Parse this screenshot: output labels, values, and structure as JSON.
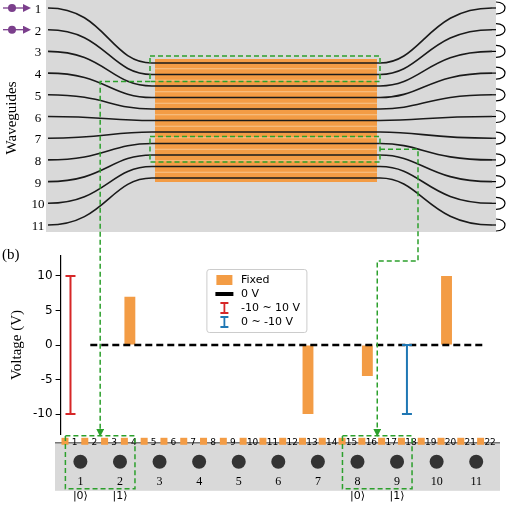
{
  "chart_data": {
    "type": "bar",
    "y_label": "Voltage (V)",
    "categories": [
      "1",
      "2",
      "3",
      "4",
      "5",
      "6",
      "7",
      "8",
      "9",
      "10",
      "11",
      "12",
      "13",
      "14",
      "15",
      "16",
      "17",
      "18",
      "19",
      "20",
      "21",
      "22"
    ],
    "series": [
      {
        "name": "Fixed",
        "type": "bar",
        "color": "#f39c45",
        "values": [
          null,
          null,
          null,
          7,
          null,
          null,
          null,
          null,
          null,
          null,
          null,
          null,
          -10,
          null,
          null,
          -4.5,
          null,
          null,
          null,
          10,
          null,
          null
        ]
      },
      {
        "name": "0 V",
        "type": "line",
        "color": "#000000",
        "line_style": "dashed",
        "values": [
          null,
          0,
          0,
          null,
          0,
          0,
          0,
          0,
          0,
          0,
          0,
          0,
          null,
          0,
          0,
          null,
          0,
          null,
          0,
          null,
          0,
          0
        ]
      },
      {
        "name": "-10 ~ 10 V",
        "type": "range",
        "color": "#d62728",
        "values": [
          [
            -10,
            10
          ],
          null,
          null,
          null,
          null,
          null,
          null,
          null,
          null,
          null,
          null,
          null,
          null,
          null,
          null,
          null,
          null,
          null,
          null,
          null,
          null,
          null
        ]
      },
      {
        "name": "0 ~ -10 V",
        "type": "range",
        "color": "#1f77b4",
        "values": [
          null,
          null,
          null,
          null,
          null,
          null,
          null,
          null,
          null,
          null,
          null,
          null,
          null,
          null,
          null,
          null,
          null,
          [
            -10,
            0
          ],
          null,
          null,
          null,
          null
        ]
      }
    ],
    "ylim": [
      -13,
      13
    ],
    "yticks": [
      -10,
      -5,
      0,
      5,
      10
    ],
    "grid": false,
    "legend": "top",
    "tick_labels": "y"
  },
  "diagram": {
    "panel_label": "(b)",
    "waveguide_axis_label": "Waveguides",
    "waveguides": [
      "1",
      "2",
      "3",
      "4",
      "5",
      "6",
      "7",
      "8",
      "9",
      "10",
      "11"
    ],
    "inputs": [
      1,
      2
    ],
    "qubits": [
      {
        "waveguides": [
          1,
          2
        ],
        "labels": [
          "|0⟩",
          "|1⟩"
        ]
      },
      {
        "waveguides": [
          8,
          9
        ],
        "labels": [
          "|0⟩",
          "|1⟩"
        ]
      }
    ]
  }
}
